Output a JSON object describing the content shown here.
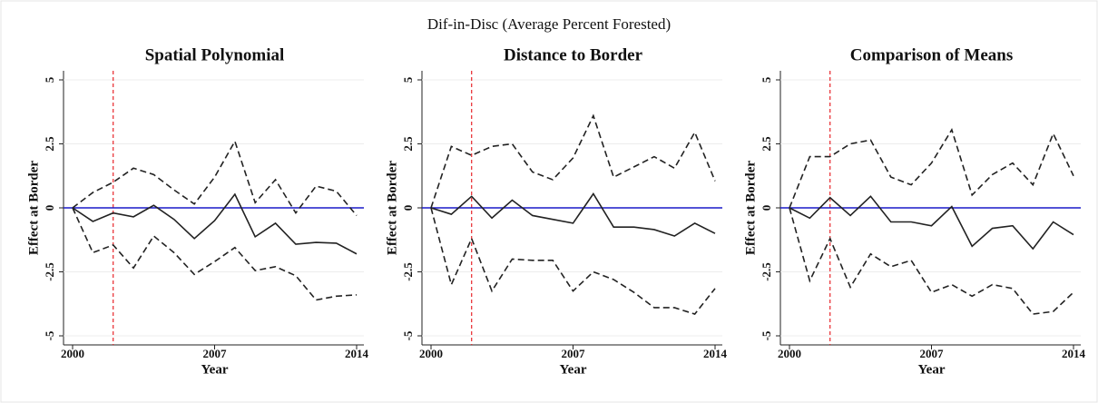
{
  "title": "Dif-in-Disc (Average Percent Forested)",
  "chart_data": [
    {
      "type": "line",
      "title": "Spatial Polynomial",
      "x_label": "Year",
      "y_label": "Effect at Border",
      "x": [
        2000,
        2001,
        2002,
        2003,
        2004,
        2005,
        2006,
        2007,
        2008,
        2009,
        2010,
        2011,
        2012,
        2013,
        2014
      ],
      "xlim": [
        2000,
        2014
      ],
      "xticks": [
        2000,
        2007,
        2014
      ],
      "ylim": [
        -5,
        5
      ],
      "yticks": [
        -5,
        -2.5,
        0,
        2.5,
        5
      ],
      "grid": true,
      "vline": 2002,
      "vline_color": "#e8262a",
      "hline": 0,
      "hline_color": "#1a1ac8",
      "series": [
        {
          "color": "#222222",
          "dashed": false,
          "values": [
            0,
            -0.53,
            -0.2,
            -0.35,
            0.1,
            -0.45,
            -1.2,
            -0.5,
            0.53,
            -1.13,
            -0.6,
            -1.42,
            -1.35,
            -1.38,
            -1.8
          ]
        },
        {
          "color": "#222222",
          "dashed": true,
          "values": [
            0,
            0.6,
            1.0,
            1.55,
            1.3,
            0.7,
            0.15,
            1.2,
            2.6,
            0.2,
            1.1,
            -0.2,
            0.85,
            0.65,
            -0.3
          ]
        },
        {
          "color": "#222222",
          "dashed": true,
          "values": [
            0,
            -1.75,
            -1.45,
            -2.35,
            -1.1,
            -1.75,
            -2.6,
            -2.1,
            -1.55,
            -2.45,
            -2.3,
            -2.65,
            -3.6,
            -3.45,
            -3.4
          ]
        }
      ]
    },
    {
      "type": "line",
      "title": "Distance to Border",
      "x_label": "Year",
      "y_label": "Effect at Border",
      "x": [
        2000,
        2001,
        2002,
        2003,
        2004,
        2005,
        2006,
        2007,
        2008,
        2009,
        2010,
        2011,
        2012,
        2013,
        2014
      ],
      "xlim": [
        2000,
        2014
      ],
      "xticks": [
        2000,
        2007,
        2014
      ],
      "ylim": [
        -5,
        5
      ],
      "yticks": [
        -5,
        -2.5,
        0,
        2.5,
        5
      ],
      "grid": true,
      "vline": 2002,
      "vline_color": "#e8262a",
      "hline": 0,
      "hline_color": "#1a1ac8",
      "series": [
        {
          "color": "#222222",
          "dashed": false,
          "values": [
            0,
            -0.25,
            0.45,
            -0.4,
            0.3,
            -0.3,
            -0.45,
            -0.6,
            0.55,
            -0.75,
            -0.75,
            -0.85,
            -1.1,
            -0.6,
            -1.0
          ]
        },
        {
          "color": "#222222",
          "dashed": true,
          "values": [
            0,
            2.4,
            2.05,
            2.4,
            2.5,
            1.4,
            1.1,
            1.95,
            3.6,
            1.2,
            1.6,
            2.0,
            1.55,
            2.95,
            1.05
          ]
        },
        {
          "color": "#222222",
          "dashed": true,
          "values": [
            0,
            -3.0,
            -1.2,
            -3.25,
            -2.0,
            -2.05,
            -2.05,
            -3.25,
            -2.5,
            -2.8,
            -3.3,
            -3.9,
            -3.9,
            -4.15,
            -3.15
          ]
        }
      ]
    },
    {
      "type": "line",
      "title": "Comparison of Means",
      "x_label": "Year",
      "y_label": "Effect at Border",
      "x": [
        2000,
        2001,
        2002,
        2003,
        2004,
        2005,
        2006,
        2007,
        2008,
        2009,
        2010,
        2011,
        2012,
        2013,
        2014
      ],
      "xlim": [
        2000,
        2014
      ],
      "xticks": [
        2000,
        2007,
        2014
      ],
      "ylim": [
        -5,
        5
      ],
      "yticks": [
        -5,
        -2.5,
        0,
        2.5,
        5
      ],
      "grid": true,
      "vline": 2002,
      "vline_color": "#e8262a",
      "hline": 0,
      "hline_color": "#1a1ac8",
      "series": [
        {
          "color": "#222222",
          "dashed": false,
          "values": [
            0,
            -0.4,
            0.4,
            -0.3,
            0.45,
            -0.55,
            -0.55,
            -0.7,
            0.05,
            -1.5,
            -0.8,
            -0.7,
            -1.6,
            -0.55,
            -1.05
          ]
        },
        {
          "color": "#222222",
          "dashed": true,
          "values": [
            0,
            2.0,
            2.0,
            2.5,
            2.65,
            1.2,
            0.9,
            1.75,
            3.05,
            0.5,
            1.3,
            1.75,
            0.9,
            2.9,
            1.25
          ]
        },
        {
          "color": "#222222",
          "dashed": true,
          "values": [
            0,
            -2.85,
            -1.2,
            -3.1,
            -1.8,
            -2.3,
            -2.05,
            -3.3,
            -3.0,
            -3.45,
            -3.0,
            -3.15,
            -4.15,
            -4.05,
            -3.3
          ]
        }
      ]
    }
  ]
}
